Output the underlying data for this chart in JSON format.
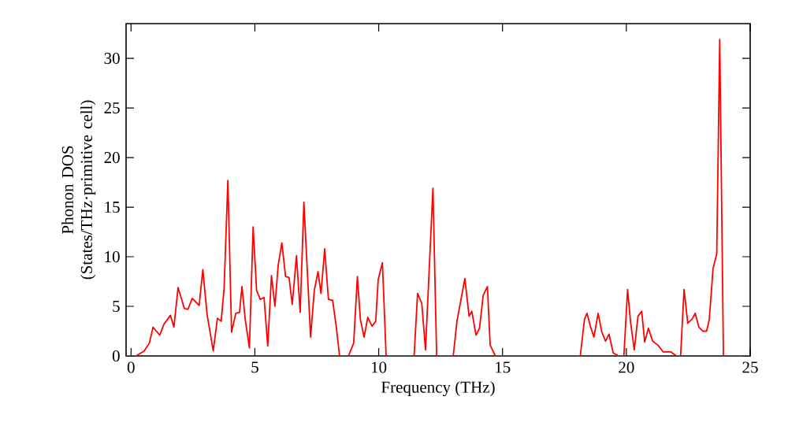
{
  "chart_data": {
    "type": "line",
    "xlabel": "Frequency (THz)",
    "ylabel": "Phonon DOS (States/THz·primitive cell)",
    "xlim": [
      -0.2,
      25
    ],
    "ylim": [
      0,
      33.5
    ],
    "xticks": [
      0,
      5,
      10,
      15,
      20,
      25
    ],
    "yticks": [
      0,
      5,
      10,
      15,
      20,
      25,
      30
    ],
    "marker": "none",
    "line_style": "solid",
    "series": [
      {
        "color": "#ff0000",
        "x": [
          -0.2,
          0.2,
          0.53,
          0.74,
          0.89,
          1.16,
          1.33,
          1.59,
          1.73,
          1.9,
          2.15,
          2.3,
          2.47,
          2.75,
          2.9,
          3.07,
          3.32,
          3.49,
          3.64,
          3.76,
          3.91,
          4.06,
          4.23,
          4.38,
          4.48,
          4.61,
          4.78,
          4.93,
          5.07,
          5.22,
          5.37,
          5.52,
          5.67,
          5.81,
          5.94,
          6.09,
          6.24,
          6.38,
          6.51,
          6.68,
          6.83,
          6.98,
          7.25,
          7.4,
          7.55,
          7.67,
          7.82,
          7.97,
          8.14,
          8.29,
          8.42,
          8.78,
          8.99,
          9.14,
          9.26,
          9.41,
          9.56,
          9.73,
          9.88,
          9.98,
          10.15,
          10.3,
          11.43,
          11.57,
          11.74,
          11.89,
          12.19,
          12.34,
          13.01,
          13.16,
          13.48,
          13.65,
          13.76,
          13.93,
          14.07,
          14.22,
          14.39,
          14.5,
          14.71,
          18.14,
          18.31,
          18.41,
          18.56,
          18.69,
          18.86,
          19.01,
          19.16,
          19.3,
          19.47,
          19.69,
          19.9,
          20.05,
          20.17,
          20.32,
          20.47,
          20.62,
          20.74,
          20.89,
          21.06,
          21.27,
          21.49,
          21.8,
          22.02,
          22.19,
          22.33,
          22.48,
          22.65,
          22.78,
          22.93,
          23.08,
          23.24,
          23.35,
          23.5,
          23.65,
          23.77,
          23.92,
          24.98
        ],
        "values": [
          0,
          0,
          0.5,
          1.3,
          2.9,
          2.1,
          3.2,
          4.1,
          2.9,
          6.9,
          4.8,
          4.7,
          5.8,
          5.1,
          8.7,
          4.2,
          0.5,
          3.8,
          3.5,
          6.9,
          17.7,
          2.4,
          4.3,
          4.4,
          7.0,
          3.7,
          0.8,
          13.0,
          6.6,
          5.7,
          5.9,
          1.0,
          8.1,
          5.0,
          9.1,
          11.4,
          8.0,
          7.9,
          5.2,
          10.1,
          4.4,
          15.5,
          1.9,
          6.6,
          8.5,
          6.3,
          10.8,
          5.7,
          5.6,
          2.9,
          0,
          0,
          1.3,
          8.0,
          3.7,
          1.9,
          3.9,
          3.0,
          3.5,
          7.7,
          9.4,
          0,
          0,
          6.3,
          5.3,
          0.6,
          16.9,
          0,
          0,
          3.5,
          7.8,
          4.0,
          4.5,
          2.1,
          2.8,
          6.1,
          7.0,
          1.1,
          0,
          0,
          3.7,
          4.3,
          2.9,
          1.9,
          4.3,
          2.4,
          1.5,
          2.2,
          0.3,
          0,
          0,
          6.7,
          3.4,
          0.6,
          4.0,
          4.5,
          1.4,
          2.8,
          1.5,
          1.1,
          0.4,
          0.4,
          0,
          0,
          6.7,
          3.3,
          3.7,
          4.3,
          2.9,
          2.5,
          2.5,
          3.7,
          8.8,
          10.3,
          31.9,
          0,
          0
        ]
      }
    ]
  }
}
